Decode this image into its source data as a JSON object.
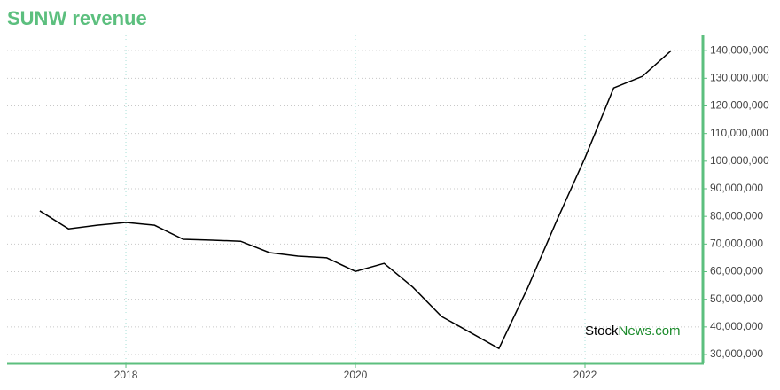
{
  "chart_data": {
    "type": "line",
    "title": "SUNW revenue",
    "watermark": [
      "Stock",
      "News.com"
    ],
    "x": [
      2017.25,
      2017.5,
      2017.75,
      2018.0,
      2018.25,
      2018.5,
      2018.75,
      2019.0,
      2019.25,
      2019.5,
      2019.75,
      2020.0,
      2020.25,
      2020.5,
      2020.75,
      2021.0,
      2021.25,
      2021.5,
      2021.75,
      2022.0,
      2022.25,
      2022.5,
      2022.75
    ],
    "series": [
      {
        "name": "SUNW revenue",
        "color": "#000000",
        "values": [
          82000000,
          75500000,
          76800000,
          77800000,
          76800000,
          71700000,
          71400000,
          71000000,
          66900000,
          65600000,
          65000000,
          60100000,
          63000000,
          54400000,
          43800000,
          38000000,
          32200000,
          54100000,
          78100000,
          101200000,
          126500000,
          130700000,
          140000000
        ]
      }
    ],
    "xlim": [
      2016.965,
      2023.027
    ],
    "xticks": [
      2018,
      2020,
      2022
    ],
    "ylim": [
      26800000,
      145500000
    ],
    "yticks": [
      {
        "value": 30000000,
        "label": "30,000,000"
      },
      {
        "value": 40000000,
        "label": "40,000,000"
      },
      {
        "value": 50000000,
        "label": "50,000,000"
      },
      {
        "value": 60000000,
        "label": "60,000,000"
      },
      {
        "value": 70000000,
        "label": "70,000,000"
      },
      {
        "value": 80000000,
        "label": "80,000,000"
      },
      {
        "value": 90000000,
        "label": "90,000,000"
      },
      {
        "value": 100000000,
        "label": "100,000,000"
      },
      {
        "value": 110000000,
        "label": "110,000,000"
      },
      {
        "value": 120000000,
        "label": "120,000,000"
      },
      {
        "value": 130000000,
        "label": "130,000,000"
      },
      {
        "value": 140000000,
        "label": "140,000,000"
      }
    ],
    "grid": true
  }
}
